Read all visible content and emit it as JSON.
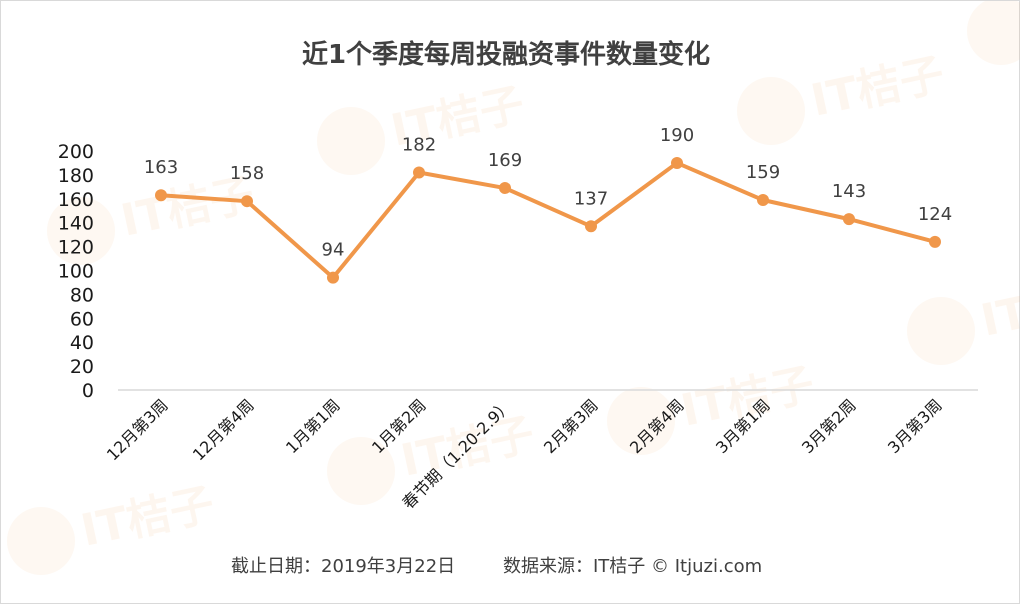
{
  "chart_data": {
    "type": "line",
    "title": "近1个季度每周投融资事件数量变化",
    "categories": [
      "12月第3周",
      "12月第4周",
      "1月第1周",
      "1月第2周",
      "春节期（1.20-2.9）",
      "2月第3周",
      "2月第4周",
      "3月第1周",
      "3月第2周",
      "3月第3周"
    ],
    "series": [
      {
        "values": [
          163,
          158,
          94,
          182,
          169,
          137,
          190,
          159,
          143,
          124
        ]
      }
    ],
    "ylim": [
      0,
      200
    ],
    "yticks": [
      0,
      20,
      40,
      60,
      80,
      100,
      120,
      140,
      160,
      180,
      200
    ],
    "grid": false,
    "legend": "none",
    "data_labels": true,
    "line_color": "#f0974a",
    "axis_color": "#d9d9d9"
  },
  "footer": {
    "cutoff": "截止日期：2019年3月22日",
    "source": "数据来源：IT桔子 © Itjuzi.com"
  },
  "watermark": {
    "text": "IT桔子",
    "color": "#f4a259"
  }
}
